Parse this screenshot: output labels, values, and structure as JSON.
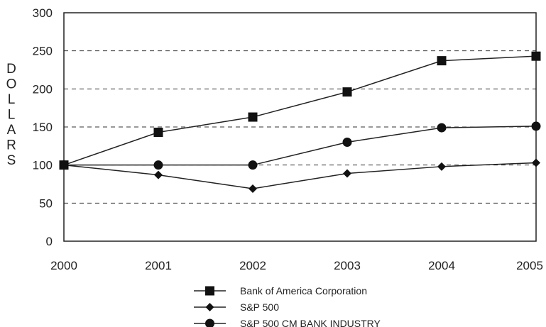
{
  "chart_data": {
    "type": "line",
    "title": "",
    "xlabel": "",
    "ylabel": "DOLLARS",
    "x": [
      "2000",
      "2001",
      "2002",
      "2003",
      "2004",
      "2005"
    ],
    "ylim": [
      0,
      300
    ],
    "yticks": [
      "0",
      "50",
      "100",
      "150",
      "200",
      "250",
      "300"
    ],
    "grid": "dashed horizontal",
    "legend_position": "bottom-center",
    "series": [
      {
        "name": "Bank of America Corporation",
        "marker": "square",
        "values": [
          100,
          143,
          163,
          196,
          237,
          243
        ]
      },
      {
        "name": "S&P 500",
        "marker": "diamond",
        "values": [
          100,
          87,
          69,
          89,
          98,
          103
        ]
      },
      {
        "name": "S&P 500 CM BANK INDUSTRY",
        "marker": "circle",
        "values": [
          100,
          100,
          100,
          130,
          149,
          151
        ]
      }
    ]
  }
}
